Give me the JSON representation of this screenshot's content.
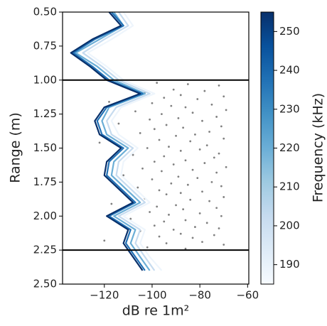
{
  "chart_data": {
    "type": "line",
    "xlabel": "dB re 1m²",
    "ylabel": "Range (m)",
    "xlim": [
      -137.5,
      -59.5
    ],
    "ylim": [
      2.5,
      0.5
    ],
    "xticks": [
      {
        "value": -120,
        "label": "−120"
      },
      {
        "value": -100,
        "label": "−100"
      },
      {
        "value": -80,
        "label": "−80"
      },
      {
        "value": -60,
        "label": "−60"
      }
    ],
    "yticks": [
      {
        "value": 0.5,
        "label": "0.50"
      },
      {
        "value": 0.75,
        "label": "0.75"
      },
      {
        "value": 1.0,
        "label": "1.00"
      },
      {
        "value": 1.25,
        "label": "1.25"
      },
      {
        "value": 1.5,
        "label": "1.50"
      },
      {
        "value": 1.75,
        "label": "1.75"
      },
      {
        "value": 2.0,
        "label": "2.00"
      },
      {
        "value": 2.25,
        "label": "2.25"
      },
      {
        "value": 2.5,
        "label": "2.50"
      }
    ],
    "hlines": [
      1.0,
      2.25
    ],
    "y": [
      0.5,
      0.6,
      0.7,
      0.8,
      0.9,
      1.0,
      1.1,
      1.2,
      1.3,
      1.4,
      1.5,
      1.6,
      1.7,
      1.8,
      1.9,
      2.0,
      2.1,
      2.2,
      2.3,
      2.4
    ],
    "series": [
      {
        "color": "#eef5fc",
        "x": [
          -112,
          -108,
          -117,
          -127,
          -119,
          -112,
          -99,
          -113,
          -117,
          -114,
          -106,
          -112,
          -113,
          -107,
          -101,
          -112,
          -103,
          -105,
          -101,
          -96
        ]
      },
      {
        "color": "#c6dbef",
        "x": [
          -114,
          -110,
          -120,
          -129,
          -121,
          -114,
          -101,
          -115,
          -119,
          -117,
          -108,
          -114,
          -115,
          -109,
          -103,
          -114,
          -105,
          -107,
          -103,
          -99
        ]
      },
      {
        "color": "#6baed6",
        "x": [
          -116,
          -112,
          -122,
          -132,
          -123,
          -116,
          -103,
          -118,
          -121,
          -119,
          -110,
          -116,
          -117,
          -111,
          -105,
          -116,
          -107,
          -109,
          -105,
          -101
        ]
      },
      {
        "color": "#2171b5",
        "x": [
          -117,
          -112,
          -124,
          -133,
          -125,
          -118,
          -104,
          -119,
          -123,
          -121,
          -112,
          -118,
          -119,
          -113,
          -107,
          -118,
          -109,
          -111,
          -107,
          -103
        ]
      },
      {
        "color": "#08306b",
        "x": [
          -118,
          -113,
          -125,
          -134,
          -126,
          -119,
          -105,
          -120,
          -124,
          -122,
          -113,
          -119,
          -120,
          -114,
          -108,
          -119,
          -110,
          -112,
          -108,
          -104
        ]
      }
    ],
    "points": {
      "color": "#808080",
      "x": [
        -98,
        -85,
        -72,
        -110,
        -91,
        -78,
        -103,
        -88,
        -70,
        -95,
        -81,
        -118,
        -100,
        -75,
        -92,
        -86,
        -69,
        -107,
        -83,
        -96,
        -73,
        -89,
        -101,
        -79,
        -114,
        -94,
        -71,
        -87,
        -99,
        -76,
        -105,
        -82,
        -90,
        -70,
        -97,
        -84,
        -122,
        -77,
        -93,
        -102,
        -80,
        -88,
        -72,
        -108,
        -95,
        -74,
        -86,
        -99,
        -78,
        -91,
        -69,
        -104,
        -83,
        -96,
        -73,
        -112,
        -89,
        -81,
        -100,
        -75,
        -92,
        -85,
        -71,
        -106,
        -97,
        -79,
        -88,
        -94,
        -70,
        -103,
        -84,
        -76,
        -117,
        -90,
        -98,
        -73,
        -87,
        -101,
        -80,
        -93,
        -71,
        -109,
        -86,
        -95,
        -77,
        -99,
        -82,
        -72,
        -91,
        -105,
        -88,
        -74,
        -97,
        -83,
        -120,
        -79,
        -94,
        -70,
        -102,
        -86
      ],
      "y": [
        1.02,
        1.03,
        1.04,
        1.06,
        1.07,
        1.08,
        1.09,
        1.11,
        1.12,
        1.13,
        1.14,
        1.16,
        1.17,
        1.18,
        1.19,
        1.2,
        1.22,
        1.23,
        1.24,
        1.25,
        1.27,
        1.28,
        1.29,
        1.3,
        1.32,
        1.33,
        1.34,
        1.35,
        1.36,
        1.38,
        1.39,
        1.4,
        1.41,
        1.43,
        1.44,
        1.45,
        1.46,
        1.48,
        1.49,
        1.5,
        1.51,
        1.52,
        1.54,
        1.55,
        1.56,
        1.57,
        1.59,
        1.6,
        1.61,
        1.62,
        1.64,
        1.65,
        1.66,
        1.67,
        1.68,
        1.7,
        1.71,
        1.72,
        1.73,
        1.75,
        1.76,
        1.77,
        1.78,
        1.79,
        1.81,
        1.82,
        1.83,
        1.84,
        1.86,
        1.87,
        1.88,
        1.89,
        1.91,
        1.92,
        1.93,
        1.94,
        1.95,
        1.97,
        1.98,
        1.99,
        2.0,
        2.02,
        2.03,
        2.04,
        2.05,
        2.07,
        2.08,
        2.09,
        2.1,
        2.11,
        2.13,
        2.14,
        2.15,
        2.16,
        2.18,
        2.19,
        2.2,
        2.21,
        2.23,
        2.24
      ]
    },
    "colorbar": {
      "label": "Frequency (kHz)",
      "lim": [
        185,
        255
      ],
      "ticks": [
        190,
        200,
        210,
        220,
        230,
        240,
        250
      ],
      "colormap": [
        "#f7fbff",
        "#deebf7",
        "#c6dbef",
        "#9ecae1",
        "#6baed6",
        "#4292c6",
        "#2171b5",
        "#08519c",
        "#08306b"
      ]
    }
  }
}
